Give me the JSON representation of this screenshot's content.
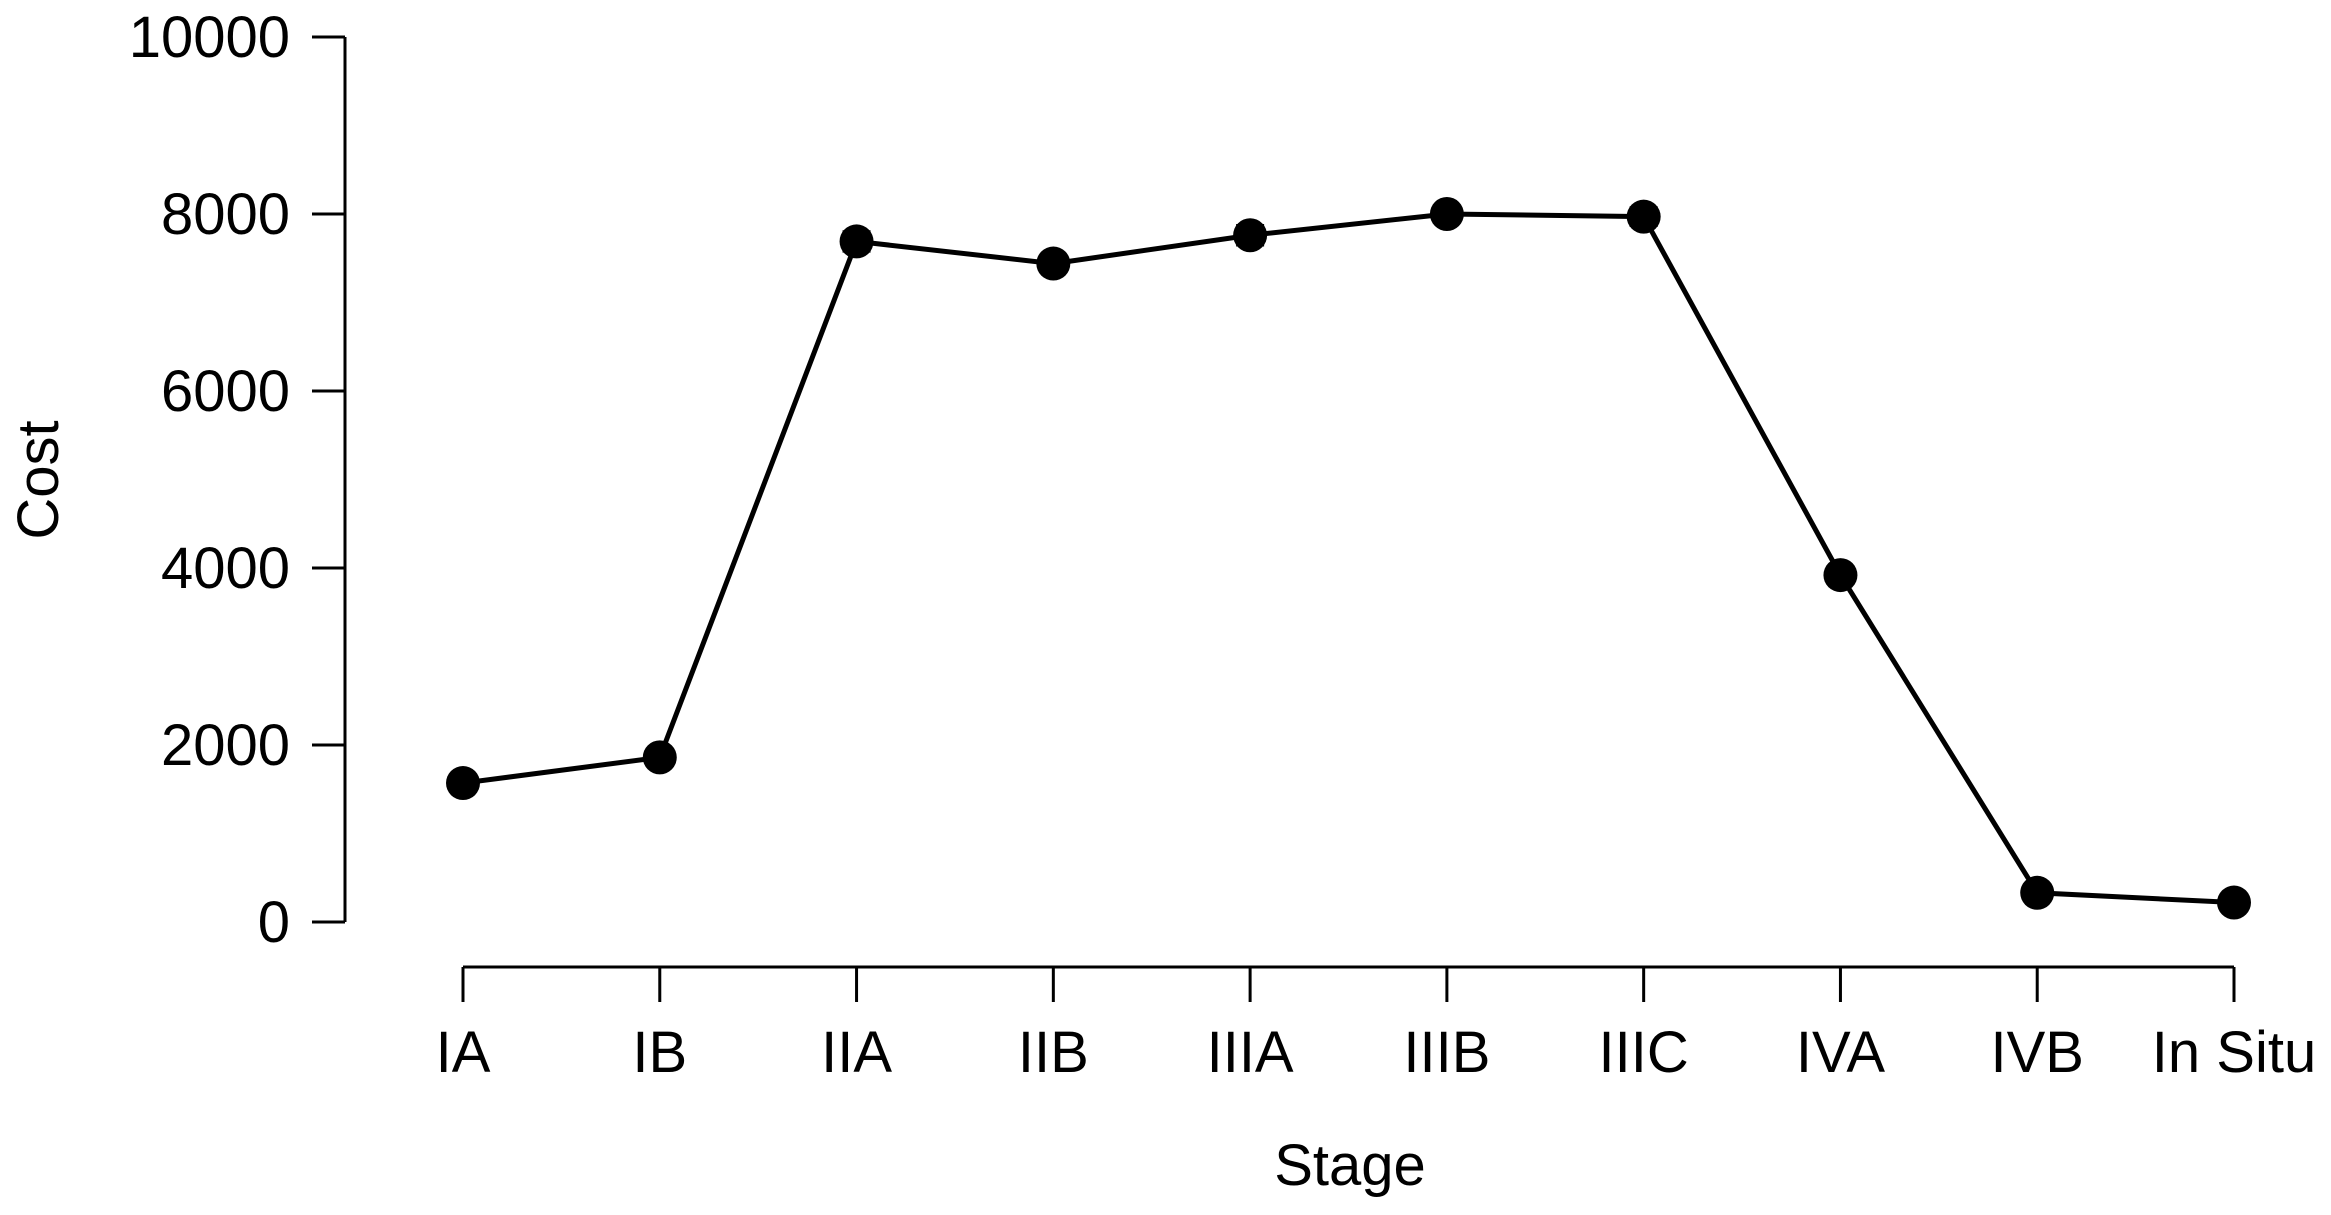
{
  "chart_data": {
    "type": "line",
    "title": "",
    "xlabel": "Stage",
    "ylabel": "Cost",
    "categories": [
      "IA",
      "IB",
      "IIA",
      "IIB",
      "IIIA",
      "IIIB",
      "IIIC",
      "IVA",
      "IVB",
      "In Situ"
    ],
    "series": [
      {
        "values": [
          1570,
          1860,
          7690,
          7440,
          7760,
          8000,
          7970,
          3920,
          330,
          220
        ],
        "error": [
          60,
          60,
          110,
          80,
          110,
          90,
          100,
          70,
          60,
          50
        ]
      }
    ],
    "ylim": [
      0,
      10000
    ],
    "yticks": [
      "0",
      "2000",
      "4000",
      "6000",
      "8000",
      "10000"
    ],
    "grid": false,
    "legend": "none",
    "colors": {
      "line": "#000000",
      "marker": "#000000",
      "axis": "#000000",
      "background": "#ffffff"
    }
  }
}
